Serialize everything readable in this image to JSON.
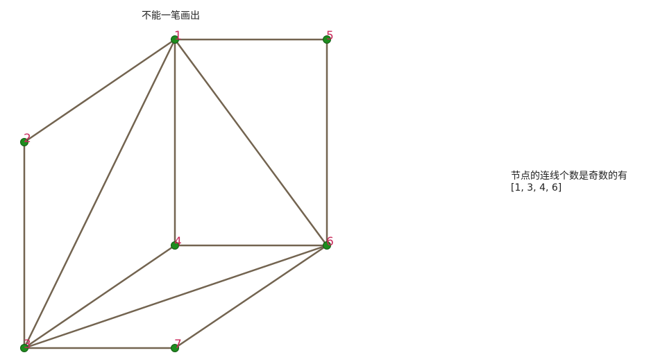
{
  "title": "不能一笔画出",
  "info": {
    "line1": "节点的连线个数是奇数的有",
    "line2": "[1, 3, 4, 6]"
  },
  "colors": {
    "edge": "#736450",
    "node_fill": "#1e8c1e",
    "node_stroke": "#145a14",
    "label": "#c8285a"
  },
  "graph": {
    "nodes": [
      {
        "id": "1",
        "label": "1"
      },
      {
        "id": "2",
        "label": "2"
      },
      {
        "id": "3",
        "label": "3"
      },
      {
        "id": "4",
        "label": "4"
      },
      {
        "id": "5",
        "label": "5"
      },
      {
        "id": "6",
        "label": "6"
      },
      {
        "id": "7",
        "label": "7"
      }
    ],
    "edges": [
      [
        "1",
        "5"
      ],
      [
        "1",
        "2"
      ],
      [
        "1",
        "4"
      ],
      [
        "1",
        "3"
      ],
      [
        "1",
        "6"
      ],
      [
        "5",
        "6"
      ],
      [
        "2",
        "3"
      ],
      [
        "4",
        "6"
      ],
      [
        "4",
        "3"
      ],
      [
        "6",
        "3"
      ],
      [
        "6",
        "7"
      ],
      [
        "3",
        "7"
      ]
    ]
  }
}
